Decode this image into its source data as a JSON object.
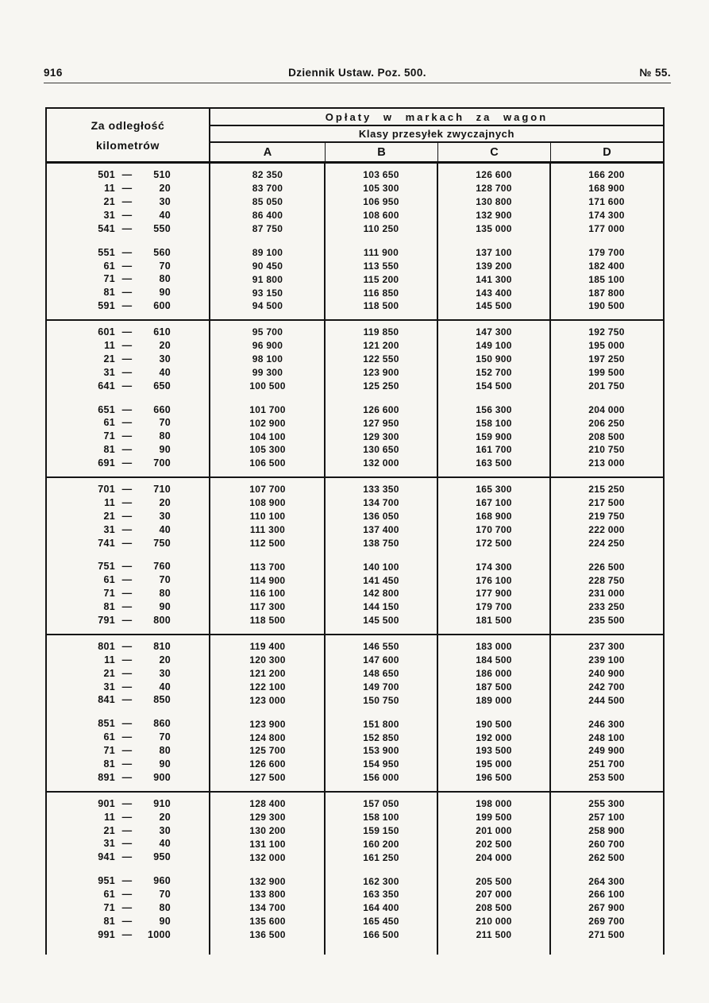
{
  "running_head": {
    "page_number": "916",
    "title": "Dziennik Ustaw. Poz. 500.",
    "issue": "№ 55."
  },
  "table": {
    "header": {
      "distance_label_line1": "Za odległość",
      "distance_label_line2": "kilometrów",
      "fees_title": "Opłaty w markach za wagon",
      "classes_title": "Klasy przesyłek zwyczajnych",
      "class_columns": [
        "A",
        "B",
        "C",
        "D"
      ]
    },
    "dash": "—",
    "sections": [
      {
        "groups": [
          [
            {
              "from": "501",
              "to": "510",
              "fees": [
                "82 350",
                "103 650",
                "126 600",
                "166 200"
              ]
            },
            {
              "from": "11",
              "to": "20",
              "fees": [
                "83 700",
                "105 300",
                "128 700",
                "168 900"
              ]
            },
            {
              "from": "21",
              "to": "30",
              "fees": [
                "85 050",
                "106 950",
                "130 800",
                "171 600"
              ]
            },
            {
              "from": "31",
              "to": "40",
              "fees": [
                "86 400",
                "108 600",
                "132 900",
                "174 300"
              ]
            },
            {
              "from": "541",
              "to": "550",
              "fees": [
                "87 750",
                "110 250",
                "135 000",
                "177 000"
              ]
            }
          ],
          [
            {
              "from": "551",
              "to": "560",
              "fees": [
                "89 100",
                "111 900",
                "137 100",
                "179 700"
              ]
            },
            {
              "from": "61",
              "to": "70",
              "fees": [
                "90 450",
                "113 550",
                "139 200",
                "182 400"
              ]
            },
            {
              "from": "71",
              "to": "80",
              "fees": [
                "91 800",
                "115 200",
                "141 300",
                "185 100"
              ]
            },
            {
              "from": "81",
              "to": "90",
              "fees": [
                "93 150",
                "116 850",
                "143 400",
                "187 800"
              ]
            },
            {
              "from": "591",
              "to": "600",
              "fees": [
                "94 500",
                "118 500",
                "145 500",
                "190 500"
              ]
            }
          ]
        ]
      },
      {
        "groups": [
          [
            {
              "from": "601",
              "to": "610",
              "fees": [
                "95 700",
                "119 850",
                "147 300",
                "192 750"
              ]
            },
            {
              "from": "11",
              "to": "20",
              "fees": [
                "96 900",
                "121 200",
                "149 100",
                "195 000"
              ]
            },
            {
              "from": "21",
              "to": "30",
              "fees": [
                "98 100",
                "122 550",
                "150 900",
                "197 250"
              ]
            },
            {
              "from": "31",
              "to": "40",
              "fees": [
                "99 300",
                "123 900",
                "152 700",
                "199 500"
              ]
            },
            {
              "from": "641",
              "to": "650",
              "fees": [
                "100 500",
                "125 250",
                "154 500",
                "201 750"
              ]
            }
          ],
          [
            {
              "from": "651",
              "to": "660",
              "fees": [
                "101 700",
                "126 600",
                "156 300",
                "204 000"
              ]
            },
            {
              "from": "61",
              "to": "70",
              "fees": [
                "102 900",
                "127 950",
                "158 100",
                "206 250"
              ]
            },
            {
              "from": "71",
              "to": "80",
              "fees": [
                "104 100",
                "129 300",
                "159 900",
                "208 500"
              ]
            },
            {
              "from": "81",
              "to": "90",
              "fees": [
                "105 300",
                "130 650",
                "161 700",
                "210 750"
              ]
            },
            {
              "from": "691",
              "to": "700",
              "fees": [
                "106 500",
                "132 000",
                "163 500",
                "213 000"
              ]
            }
          ]
        ]
      },
      {
        "groups": [
          [
            {
              "from": "701",
              "to": "710",
              "fees": [
                "107 700",
                "133 350",
                "165 300",
                "215 250"
              ]
            },
            {
              "from": "11",
              "to": "20",
              "fees": [
                "108 900",
                "134 700",
                "167 100",
                "217 500"
              ]
            },
            {
              "from": "21",
              "to": "30",
              "fees": [
                "110 100",
                "136 050",
                "168 900",
                "219 750"
              ]
            },
            {
              "from": "31",
              "to": "40",
              "fees": [
                "111 300",
                "137 400",
                "170 700",
                "222 000"
              ]
            },
            {
              "from": "741",
              "to": "750",
              "fees": [
                "112 500",
                "138 750",
                "172 500",
                "224 250"
              ]
            }
          ],
          [
            {
              "from": "751",
              "to": "760",
              "fees": [
                "113 700",
                "140 100",
                "174 300",
                "226 500"
              ]
            },
            {
              "from": "61",
              "to": "70",
              "fees": [
                "114 900",
                "141 450",
                "176 100",
                "228 750"
              ]
            },
            {
              "from": "71",
              "to": "80",
              "fees": [
                "116 100",
                "142 800",
                "177 900",
                "231 000"
              ]
            },
            {
              "from": "81",
              "to": "90",
              "fees": [
                "117 300",
                "144 150",
                "179 700",
                "233 250"
              ]
            },
            {
              "from": "791",
              "to": "800",
              "fees": [
                "118 500",
                "145 500",
                "181 500",
                "235 500"
              ]
            }
          ]
        ]
      },
      {
        "groups": [
          [
            {
              "from": "801",
              "to": "810",
              "fees": [
                "119 400",
                "146 550",
                "183 000",
                "237 300"
              ]
            },
            {
              "from": "11",
              "to": "20",
              "fees": [
                "120 300",
                "147 600",
                "184 500",
                "239 100"
              ]
            },
            {
              "from": "21",
              "to": "30",
              "fees": [
                "121 200",
                "148 650",
                "186 000",
                "240 900"
              ]
            },
            {
              "from": "31",
              "to": "40",
              "fees": [
                "122 100",
                "149 700",
                "187 500",
                "242 700"
              ]
            },
            {
              "from": "841",
              "to": "850",
              "fees": [
                "123 000",
                "150 750",
                "189 000",
                "244 500"
              ]
            }
          ],
          [
            {
              "from": "851",
              "to": "860",
              "fees": [
                "123 900",
                "151 800",
                "190 500",
                "246 300"
              ]
            },
            {
              "from": "61",
              "to": "70",
              "fees": [
                "124 800",
                "152 850",
                "192 000",
                "248 100"
              ]
            },
            {
              "from": "71",
              "to": "80",
              "fees": [
                "125 700",
                "153 900",
                "193 500",
                "249 900"
              ]
            },
            {
              "from": "81",
              "to": "90",
              "fees": [
                "126 600",
                "154 950",
                "195 000",
                "251 700"
              ]
            },
            {
              "from": "891",
              "to": "900",
              "fees": [
                "127 500",
                "156 000",
                "196 500",
                "253 500"
              ]
            }
          ]
        ]
      },
      {
        "groups": [
          [
            {
              "from": "901",
              "to": "910",
              "fees": [
                "128 400",
                "157 050",
                "198 000",
                "255 300"
              ]
            },
            {
              "from": "11",
              "to": "20",
              "fees": [
                "129 300",
                "158 100",
                "199 500",
                "257 100"
              ]
            },
            {
              "from": "21",
              "to": "30",
              "fees": [
                "130 200",
                "159 150",
                "201 000",
                "258 900"
              ]
            },
            {
              "from": "31",
              "to": "40",
              "fees": [
                "131 100",
                "160 200",
                "202 500",
                "260 700"
              ]
            },
            {
              "from": "941",
              "to": "950",
              "fees": [
                "132 000",
                "161 250",
                "204 000",
                "262 500"
              ]
            }
          ],
          [
            {
              "from": "951",
              "to": "960",
              "fees": [
                "132 900",
                "162 300",
                "205 500",
                "264 300"
              ]
            },
            {
              "from": "61",
              "to": "70",
              "fees": [
                "133 800",
                "163 350",
                "207 000",
                "266 100"
              ]
            },
            {
              "from": "71",
              "to": "80",
              "fees": [
                "134 700",
                "164 400",
                "208 500",
                "267 900"
              ]
            },
            {
              "from": "81",
              "to": "90",
              "fees": [
                "135 600",
                "165 450",
                "210 000",
                "269 700"
              ]
            },
            {
              "from": "991",
              "to": "1000",
              "fees": [
                "136 500",
                "166 500",
                "211 500",
                "271 500"
              ]
            }
          ]
        ]
      }
    ]
  }
}
